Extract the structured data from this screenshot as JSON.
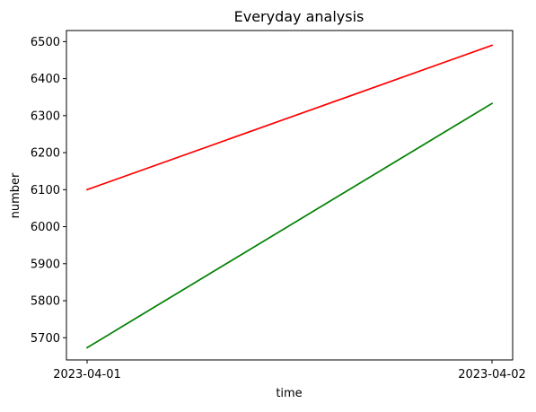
{
  "chart_data": {
    "type": "line",
    "title": "Everyday analysis",
    "xlabel": "time",
    "ylabel": "number",
    "x": [
      "2023-04-01",
      "2023-04-02"
    ],
    "ylim": [
      5640,
      6530
    ],
    "yticks": [
      5700,
      5800,
      5900,
      6000,
      6100,
      6200,
      6300,
      6400,
      6500
    ],
    "grid": false,
    "series": [
      {
        "color": "#ff0000",
        "values": [
          6100,
          6490
        ]
      },
      {
        "color": "#008000",
        "values": [
          5673,
          6333
        ]
      }
    ]
  }
}
